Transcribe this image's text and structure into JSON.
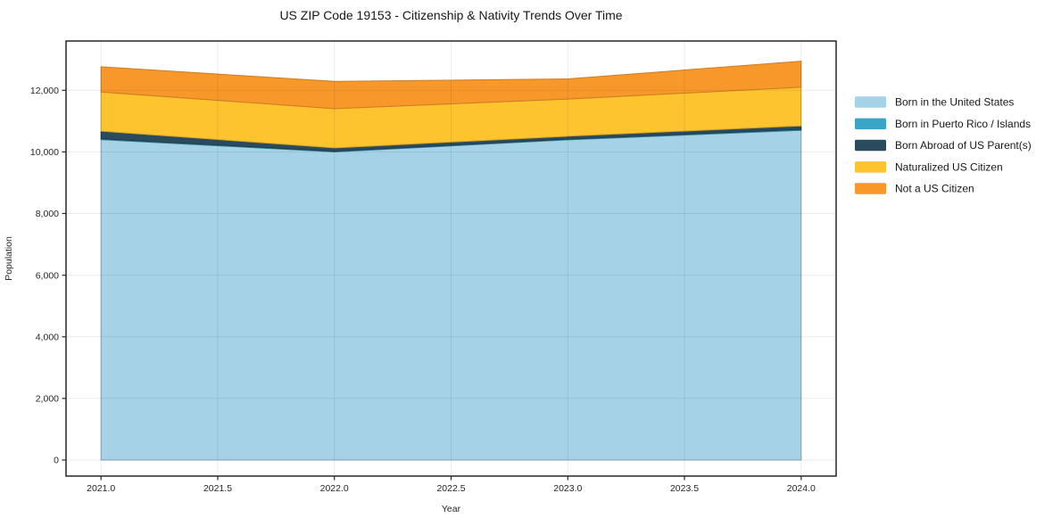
{
  "chart_data": {
    "type": "area",
    "stacked": true,
    "title": "US ZIP Code 19153 - Citizenship & Nativity Trends Over Time",
    "xlabel": "Year",
    "ylabel": "Population",
    "x": [
      2021.0,
      2022.0,
      2023.0,
      2024.0
    ],
    "series": [
      {
        "name": "Born in the United States",
        "color": "#A6D2E8",
        "values": [
          10400,
          10000,
          10390,
          10700
        ]
      },
      {
        "name": "Born in Puerto Rico / Islands",
        "color": "#3AA5C6",
        "values": [
          25,
          20,
          25,
          30
        ]
      },
      {
        "name": "Born Abroad of US Parent(s)",
        "color": "#2A4A5E",
        "values": [
          250,
          110,
          95,
          115
        ]
      },
      {
        "name": "Naturalized US Citizen",
        "color": "#FDC42F",
        "values": [
          1270,
          1275,
          1205,
          1255
        ]
      },
      {
        "name": "Not a US Citizen",
        "color": "#F8982B",
        "values": [
          820,
          885,
          655,
          845
        ]
      }
    ],
    "stacked_totals": [
      12765,
      12290,
      12370,
      12945
    ],
    "xticks": {
      "values": [
        2021.0,
        2021.5,
        2022.0,
        2022.5,
        2023.0,
        2023.5,
        2024.0
      ],
      "labels": [
        "2021.0",
        "2021.5",
        "2022.0",
        "2022.5",
        "2023.0",
        "2023.5",
        "2024.0"
      ]
    },
    "yticks": {
      "values": [
        0,
        2000,
        4000,
        6000,
        8000,
        10000,
        12000
      ],
      "labels": [
        "0",
        "2,000",
        "4,000",
        "6,000",
        "8,000",
        "10,000",
        "12,000"
      ]
    },
    "xlim": [
      2020.85,
      2024.15
    ],
    "ylim": [
      -520,
      13600
    ],
    "grid": true,
    "legend_position": "right",
    "colors": {
      "grid": "rgba(0,0,0,0.08)",
      "spine": "#262626",
      "background": "#ffffff"
    }
  }
}
